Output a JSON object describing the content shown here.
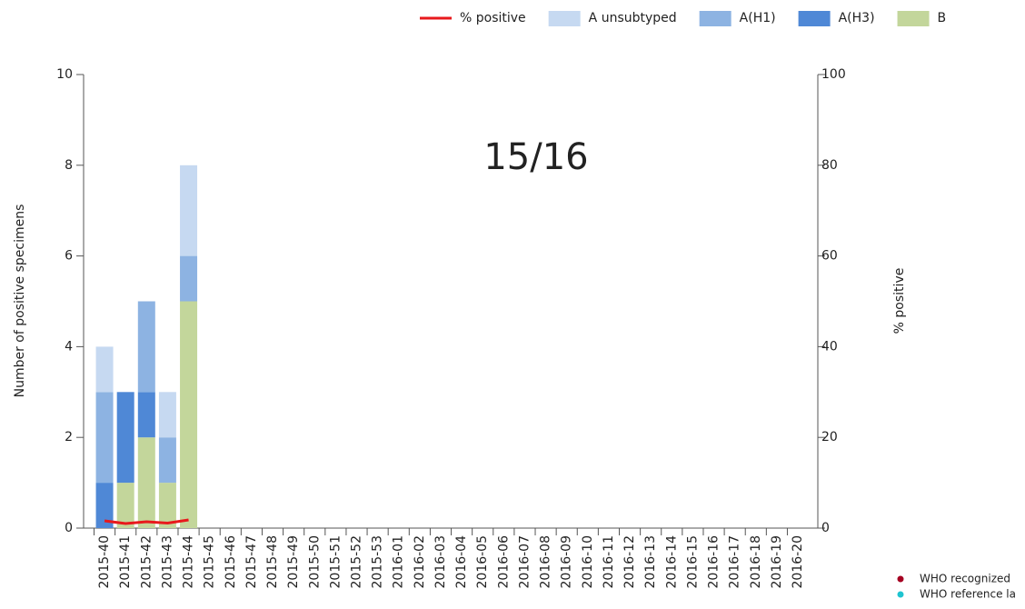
{
  "chart_data": {
    "type": "bar",
    "annotation": "15/16",
    "ylabel": "Number of positive specimens",
    "y2label": "% positive",
    "categories": [
      "2015-40",
      "2015-41",
      "2015-42",
      "2015-43",
      "2015-44",
      "2015-45",
      "2015-46",
      "2015-47",
      "2015-48",
      "2015-49",
      "2015-50",
      "2015-51",
      "2015-52",
      "2015-53",
      "2016-01",
      "2016-02",
      "2016-03",
      "2016-04",
      "2016-05",
      "2016-06",
      "2016-07",
      "2016-08",
      "2016-09",
      "2016-10",
      "2016-11",
      "2016-12",
      "2016-13",
      "2016-14",
      "2016-15",
      "2016-16",
      "2016-17",
      "2016-18",
      "2016-19",
      "2016-20"
    ],
    "stacked": true,
    "series": [
      {
        "name": "% positive",
        "type": "line",
        "axis": "y2",
        "color": "#e8191c",
        "values": [
          1.6,
          1.0,
          1.4,
          1.1,
          1.8,
          null,
          null,
          null,
          null,
          null,
          null,
          null,
          null,
          null,
          null,
          null,
          null,
          null,
          null,
          null,
          null,
          null,
          null,
          null,
          null,
          null,
          null,
          null,
          null,
          null,
          null,
          null,
          null,
          null
        ]
      },
      {
        "name": "A unsubtyped",
        "color": "#c6d9f1",
        "values": [
          1,
          0,
          0,
          1,
          2,
          null,
          null,
          null,
          null,
          null,
          null,
          null,
          null,
          null,
          null,
          null,
          null,
          null,
          null,
          null,
          null,
          null,
          null,
          null,
          null,
          null,
          null,
          null,
          null,
          null,
          null,
          null,
          null,
          null
        ]
      },
      {
        "name": "A(H1)",
        "color": "#8db3e2",
        "values": [
          2,
          0,
          2,
          1,
          1,
          null,
          null,
          null,
          null,
          null,
          null,
          null,
          null,
          null,
          null,
          null,
          null,
          null,
          null,
          null,
          null,
          null,
          null,
          null,
          null,
          null,
          null,
          null,
          null,
          null,
          null,
          null,
          null,
          null
        ]
      },
      {
        "name": "A(H3)",
        "color": "#4f88d6",
        "values": [
          1,
          2,
          1,
          0,
          0,
          null,
          null,
          null,
          null,
          null,
          null,
          null,
          null,
          null,
          null,
          null,
          null,
          null,
          null,
          null,
          null,
          null,
          null,
          null,
          null,
          null,
          null,
          null,
          null,
          null,
          null,
          null,
          null,
          null
        ]
      },
      {
        "name": "B",
        "color": "#c3d69b",
        "values": [
          0,
          1,
          2,
          1,
          5,
          null,
          null,
          null,
          null,
          null,
          null,
          null,
          null,
          null,
          null,
          null,
          null,
          null,
          null,
          null,
          null,
          null,
          null,
          null,
          null,
          null,
          null,
          null,
          null,
          null,
          null,
          null,
          null,
          null
        ]
      }
    ],
    "ylim": [
      0,
      10
    ],
    "yticks": [
      0,
      2,
      4,
      6,
      8,
      10
    ],
    "y2lim": [
      0,
      100
    ],
    "y2ticks": [
      0,
      20,
      40,
      60,
      80,
      100
    ],
    "side_legend": [
      {
        "name": "WHO recognized",
        "color": "#a50021"
      },
      {
        "name": "WHO reference la",
        "color": "#1fc4d0"
      }
    ]
  }
}
